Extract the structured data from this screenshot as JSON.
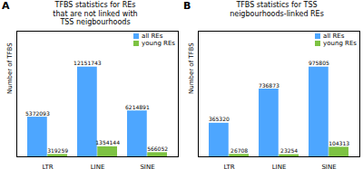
{
  "chart_data": [
    {
      "type": "bar",
      "title": "TFBS statistics for REs\nthat are not linked with\nTSS neigbourhoods",
      "annotations": [
        "A"
      ],
      "categories": [
        "LTR",
        "LINE",
        "SINE"
      ],
      "series": [
        {
          "name": "all REs",
          "color": "#4da6ff",
          "values": [
            5372093,
            12151743,
            6214891
          ]
        },
        {
          "name": "young REs",
          "color": "#7dc242",
          "values": [
            319259,
            1354144,
            566052
          ]
        }
      ],
      "ylabel": "Number of TFBS",
      "ylim": [
        0,
        17012440.2
      ],
      "yticks": [],
      "tick_labels": "x",
      "grid": false,
      "legend": "upper right",
      "data_labels": true
    },
    {
      "type": "bar",
      "title": "TFBS statistics for TSS\nneigbourhoods-linked REs",
      "annotations": [
        "B"
      ],
      "categories": [
        "LTR",
        "LINE",
        "SINE"
      ],
      "series": [
        {
          "name": "all REs",
          "color": "#4da6ff",
          "values": [
            365320,
            736873,
            975805
          ]
        },
        {
          "name": "young REs",
          "color": "#7dc242",
          "values": [
            26708,
            23254,
            104313
          ]
        }
      ],
      "ylabel": "Number of TFBS",
      "ylim": [
        0,
        1366127
      ],
      "yticks": [],
      "tick_labels": "x",
      "grid": false,
      "legend": "upper right",
      "data_labels": true
    }
  ]
}
